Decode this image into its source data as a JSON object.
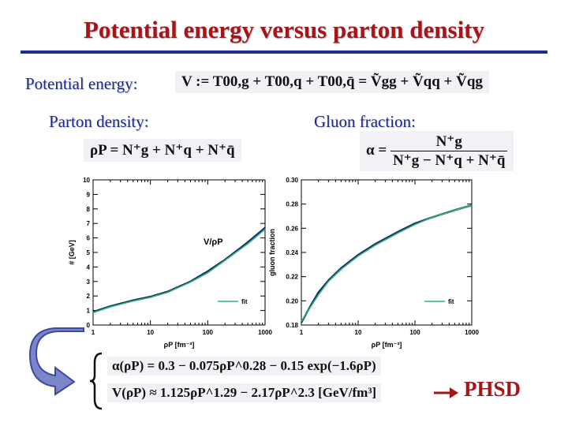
{
  "slide": {
    "title": "Potential energy versus parton density",
    "potential_label": "Potential energy:",
    "potential_eq_lhs": "V := ",
    "potential_eq_rhs": "T00,g + T00,q + T00,q̄ = Ṽgg + Ṽqq + Ṽqg",
    "parton_label": "Parton density:",
    "parton_eq": "ρP = N⁺g + N⁺q + N⁺q̄",
    "gluon_label": "Gluon fraction:",
    "gluon_eq_lhs": "α = ",
    "gluon_eq_num": "N⁺g",
    "gluon_eq_den": "N⁺g − N⁺q + N⁺q̄",
    "fit_eq_1": "α(ρP) = 0.3 − 0.075ρP^0.28 − 0.15 exp(−1.6ρP)",
    "fit_eq_2": "V(ρP) ≈ 1.125ρP^1.29 − 2.17ρP^2.3  [GeV/fm³]",
    "phsd_label": "PHSD",
    "colors": {
      "title": "#a4161a",
      "label": "#1b2a8a",
      "fit_curve": "#2bb673",
      "data_curve": "#1f2a6e",
      "arrow_fill": "#7a86c9",
      "arrow_stroke": "#3d4a9c"
    },
    "icons": [
      "curved-return-arrow-icon",
      "right-arrow-icon",
      "left-brace-icon"
    ]
  },
  "chart_data": [
    {
      "type": "line",
      "xscale": "log",
      "xlim": [
        1,
        1000
      ],
      "ylim": [
        0,
        10
      ],
      "xlabel": "ρP [fm⁻³]",
      "ylabel": "# [GeV]",
      "annotation": "V/ρP",
      "x_ticks": [
        "1",
        "10",
        "100",
        "1000"
      ],
      "y_ticks": [
        "0",
        "1",
        "2",
        "3",
        "4",
        "5",
        "6",
        "7",
        "8",
        "9",
        "10"
      ],
      "legend": "fit",
      "legend_position": "bottom-right",
      "grid": false,
      "series": [
        {
          "x": [
            1,
            2,
            5,
            10,
            20,
            50,
            100,
            200,
            500,
            1000
          ],
          "values": [
            0.9,
            1.3,
            1.7,
            1.95,
            2.3,
            3.0,
            3.7,
            4.5,
            5.7,
            6.7
          ]
        },
        {
          "name": "fit",
          "x": [
            1,
            2,
            5,
            10,
            20,
            50,
            100,
            200,
            500,
            1000
          ],
          "values": [
            0.85,
            1.25,
            1.65,
            1.9,
            2.25,
            2.95,
            3.6,
            4.45,
            5.6,
            6.6
          ]
        }
      ]
    },
    {
      "type": "line",
      "xscale": "log",
      "xlim": [
        1,
        1000
      ],
      "ylim": [
        0.18,
        0.3
      ],
      "xlabel": "ρP [fm⁻³]",
      "ylabel": "gluon fraction",
      "x_ticks": [
        "1",
        "10",
        "100",
        "1000"
      ],
      "y_ticks": [
        "0.18",
        "0.20",
        "0.22",
        "0.24",
        "0.26",
        "0.28",
        "0.30"
      ],
      "legend": "fit",
      "legend_position": "bottom-right",
      "grid": false,
      "series": [
        {
          "x": [
            1,
            1.5,
            2,
            3,
            5,
            10,
            20,
            50,
            100,
            200,
            500,
            1000
          ],
          "values": [
            0.182,
            0.197,
            0.207,
            0.217,
            0.227,
            0.238,
            0.247,
            0.257,
            0.264,
            0.269,
            0.275,
            0.279
          ]
        },
        {
          "name": "fit",
          "x": [
            1,
            1.5,
            2,
            3,
            5,
            10,
            20,
            50,
            100,
            200,
            500,
            1000
          ],
          "values": [
            0.183,
            0.196,
            0.205,
            0.216,
            0.226,
            0.237,
            0.246,
            0.256,
            0.263,
            0.269,
            0.275,
            0.279
          ]
        }
      ]
    }
  ]
}
